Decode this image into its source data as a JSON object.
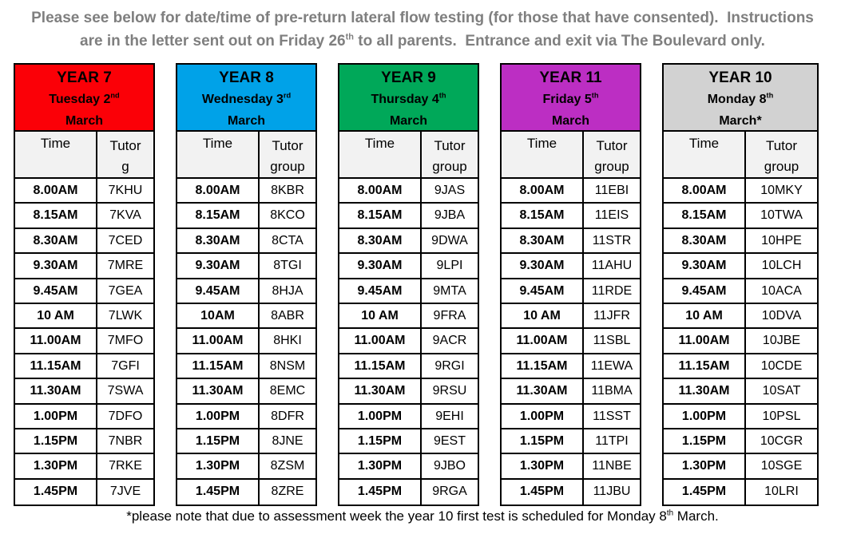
{
  "intro": {
    "part1": "Please see below for date/time of pre-return lateral flow testing (for those that have consented).  Instructions are in the letter sent out on Friday 26",
    "sup": "th",
    "part2": " to all parents.  Entrance and exit via The Boulevard only."
  },
  "tables": [
    {
      "year": "YEAR 7",
      "day": "Tuesday 2",
      "day_sup": "nd",
      "month": "March",
      "header_color": "#fb0007",
      "col_time": "Time",
      "col_group_line1": "Tutor",
      "col_group_line2": "g",
      "rows": [
        [
          "8.00AM",
          "7KHU"
        ],
        [
          "8.15AM",
          "7KVA"
        ],
        [
          "8.30AM",
          "7CED"
        ],
        [
          "9.30AM",
          "7MRE"
        ],
        [
          "9.45AM",
          "7GEA"
        ],
        [
          "10 AM",
          "7LWK"
        ],
        [
          "11.00AM",
          "7MFO"
        ],
        [
          "11.15AM",
          "7GFI"
        ],
        [
          "11.30AM",
          "7SWA"
        ],
        [
          "1.00PM",
          "7DFO"
        ],
        [
          "1.15PM",
          "7NBR"
        ],
        [
          "1.30PM",
          "7RKE"
        ],
        [
          "1.45PM",
          "7JVE"
        ]
      ]
    },
    {
      "year": "YEAR 8",
      "day": "Wednesday 3",
      "day_sup": "rd",
      "month": "March",
      "header_color": "#00a2e8",
      "col_time": "Time",
      "col_group_line1": "Tutor",
      "col_group_line2": "group",
      "rows": [
        [
          "8.00AM",
          "8KBR"
        ],
        [
          "8.15AM",
          "8KCO"
        ],
        [
          "8.30AM",
          "8CTA"
        ],
        [
          "9.30AM",
          "8TGI"
        ],
        [
          "9.45AM",
          "8HJA"
        ],
        [
          "10AM",
          "8ABR"
        ],
        [
          "11.00AM",
          "8HKI"
        ],
        [
          "11.15AM",
          "8NSM"
        ],
        [
          "11.30AM",
          "8EMC"
        ],
        [
          "1.00PM",
          "8DFR"
        ],
        [
          "1.15PM",
          "8JNE"
        ],
        [
          "1.30PM",
          "8ZSM"
        ],
        [
          "1.45PM",
          "8ZRE"
        ]
      ]
    },
    {
      "year": "YEAR 9",
      "day": "Thursday 4",
      "day_sup": "th",
      "month": "March",
      "header_color": "#00a859",
      "col_time": "Time",
      "col_group_line1": "Tutor",
      "col_group_line2": "group",
      "rows": [
        [
          "8.00AM",
          "9JAS"
        ],
        [
          "8.15AM",
          "9JBA"
        ],
        [
          "8.30AM",
          "9DWA"
        ],
        [
          "9.30AM",
          "9LPI"
        ],
        [
          "9.45AM",
          "9MTA"
        ],
        [
          "10 AM",
          "9FRA"
        ],
        [
          "11.00AM",
          "9ACR"
        ],
        [
          "11.15AM",
          "9RGI"
        ],
        [
          "11.30AM",
          "9RSU"
        ],
        [
          "1.00PM",
          "9EHI"
        ],
        [
          "1.15PM",
          "9EST"
        ],
        [
          "1.30PM",
          "9JBO"
        ],
        [
          "1.45PM",
          "9RGA"
        ]
      ]
    },
    {
      "year": "YEAR 11",
      "day": "Friday 5",
      "day_sup": "th",
      "month": "March",
      "header_color": "#bc2ec3",
      "col_time": "Time",
      "col_group_line1": "Tutor",
      "col_group_line2": "group",
      "rows": [
        [
          "8.00AM",
          "11EBI"
        ],
        [
          "8.15AM",
          "11EIS"
        ],
        [
          "8.30AM",
          "11STR"
        ],
        [
          "9.30AM",
          "11AHU"
        ],
        [
          "9.45AM",
          "11RDE"
        ],
        [
          "10 AM",
          "11JFR"
        ],
        [
          "11.00AM",
          "11SBL"
        ],
        [
          "11.15AM",
          "11EWA"
        ],
        [
          "11.30AM",
          "11BMA"
        ],
        [
          "1.00PM",
          "11SST"
        ],
        [
          "1.15PM",
          "11TPI"
        ],
        [
          "1.30PM",
          "11NBE"
        ],
        [
          "1.45PM",
          "11JBU"
        ]
      ]
    },
    {
      "year": "YEAR 10",
      "day": "Monday 8",
      "day_sup": "th",
      "month": "March*",
      "header_color": "#d2d2d2",
      "col_time": "Time",
      "col_group_line1": "Tutor",
      "col_group_line2": "group",
      "rows": [
        [
          "8.00AM",
          "10MKY"
        ],
        [
          "8.15AM",
          "10TWA"
        ],
        [
          "8.30AM",
          "10HPE"
        ],
        [
          "9.30AM",
          "10LCH"
        ],
        [
          "9.45AM",
          "10ACA"
        ],
        [
          "10 AM",
          "10DVA"
        ],
        [
          "11.00AM",
          "10JBE"
        ],
        [
          "11.15AM",
          "10CDE"
        ],
        [
          "11.30AM",
          "10SAT"
        ],
        [
          "1.00PM",
          "10PSL"
        ],
        [
          "1.15PM",
          "10CGR"
        ],
        [
          "1.30PM",
          "10SGE"
        ],
        [
          "1.45PM",
          "10LRI"
        ]
      ]
    }
  ],
  "footnote": {
    "part1": "*please note that due to assessment week the year 10 first test is scheduled for Monday 8",
    "sup": "th",
    "part2": " March."
  }
}
